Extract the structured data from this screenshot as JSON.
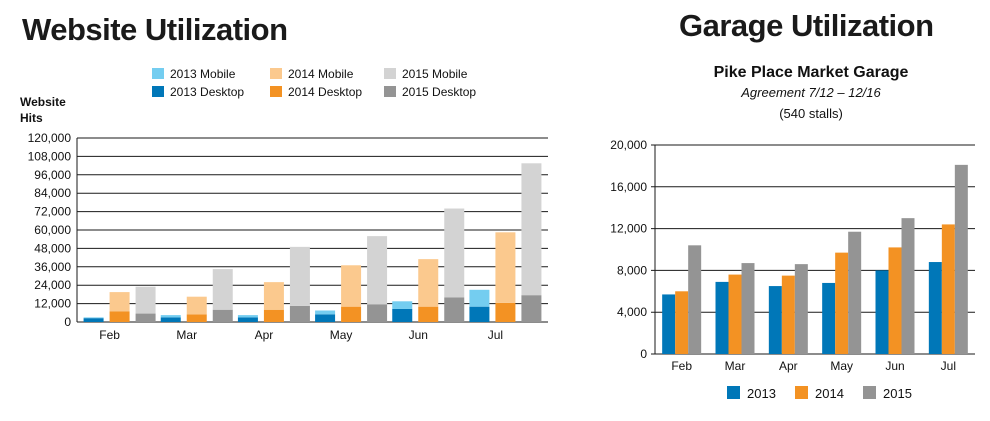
{
  "website": {
    "title": "Website Utilization"
  },
  "garage": {
    "title": "Garage Utilization"
  },
  "chart_data": [
    {
      "type": "bar",
      "title": "Website Utilization",
      "ylabel": "Website Hits",
      "ylim": [
        0,
        120000
      ],
      "yticks": [
        0,
        12000,
        24000,
        36000,
        48000,
        60000,
        72000,
        84000,
        96000,
        108000,
        120000
      ],
      "ytick_labels": [
        "0",
        "12,000",
        "24,000",
        "36,000",
        "48,000",
        "60,000",
        "72,000",
        "84,000",
        "96,000",
        "108,000",
        "120,000"
      ],
      "categories": [
        "Feb",
        "Mar",
        "Apr",
        "May",
        "Jun",
        "Jul"
      ],
      "stacked": true,
      "grid": "horizontal",
      "legend_position": "top",
      "groups": [
        {
          "year": "2013",
          "series": [
            {
              "name": "2013 Desktop",
              "color": "#0077b8",
              "values": [
                2500,
                3000,
                3000,
                5000,
                8500,
                10000
              ]
            },
            {
              "name": "2013 Mobile",
              "color": "#74cdf0",
              "values": [
                500,
                1500,
                1500,
                2500,
                5000,
                11000
              ]
            }
          ]
        },
        {
          "year": "2014",
          "series": [
            {
              "name": "2014 Desktop",
              "color": "#f39223",
              "values": [
                7000,
                5000,
                8000,
                10000,
                10000,
                12500
              ]
            },
            {
              "name": "2014 Mobile",
              "color": "#fbc98e",
              "values": [
                12500,
                11500,
                18000,
                27000,
                31000,
                46000
              ]
            }
          ]
        },
        {
          "year": "2015",
          "series": [
            {
              "name": "2015 Desktop",
              "color": "#949494",
              "values": [
                5500,
                8000,
                10500,
                11500,
                16000,
                17500
              ]
            },
            {
              "name": "2015 Mobile",
              "color": "#d3d3d3",
              "values": [
                17500,
                26500,
                38500,
                44500,
                58000,
                86000
              ]
            }
          ]
        }
      ],
      "legend": [
        {
          "label": "2013 Mobile",
          "color": "#74cdf0"
        },
        {
          "label": "2014 Mobile",
          "color": "#fbc98e"
        },
        {
          "label": "2015 Mobile",
          "color": "#d3d3d3"
        },
        {
          "label": "2013 Desktop",
          "color": "#0077b8"
        },
        {
          "label": "2014 Desktop",
          "color": "#f39223"
        },
        {
          "label": "2015 Desktop",
          "color": "#949494"
        }
      ]
    },
    {
      "type": "bar",
      "title": "Pike Place Market Garage",
      "subtitle": "Agreement 7/12 – 12/16",
      "subtitle2": "(540 stalls)",
      "ylim": [
        0,
        20000
      ],
      "yticks": [
        0,
        4000,
        8000,
        12000,
        16000,
        20000
      ],
      "ytick_labels": [
        "0",
        "4,000",
        "8,000",
        "12,000",
        "16,000",
        "20,000"
      ],
      "categories": [
        "Feb",
        "Mar",
        "Apr",
        "May",
        "Jun",
        "Jul"
      ],
      "grid": "horizontal",
      "legend_position": "bottom",
      "series": [
        {
          "name": "2013",
          "color": "#0077b8",
          "values": [
            5700,
            6900,
            6500,
            6800,
            8000,
            8800
          ]
        },
        {
          "name": "2014",
          "color": "#f39223",
          "values": [
            6000,
            7600,
            7500,
            9700,
            10200,
            12400
          ]
        },
        {
          "name": "2015",
          "color": "#949494",
          "values": [
            10400,
            8700,
            8600,
            11700,
            13000,
            18100
          ]
        }
      ]
    }
  ]
}
